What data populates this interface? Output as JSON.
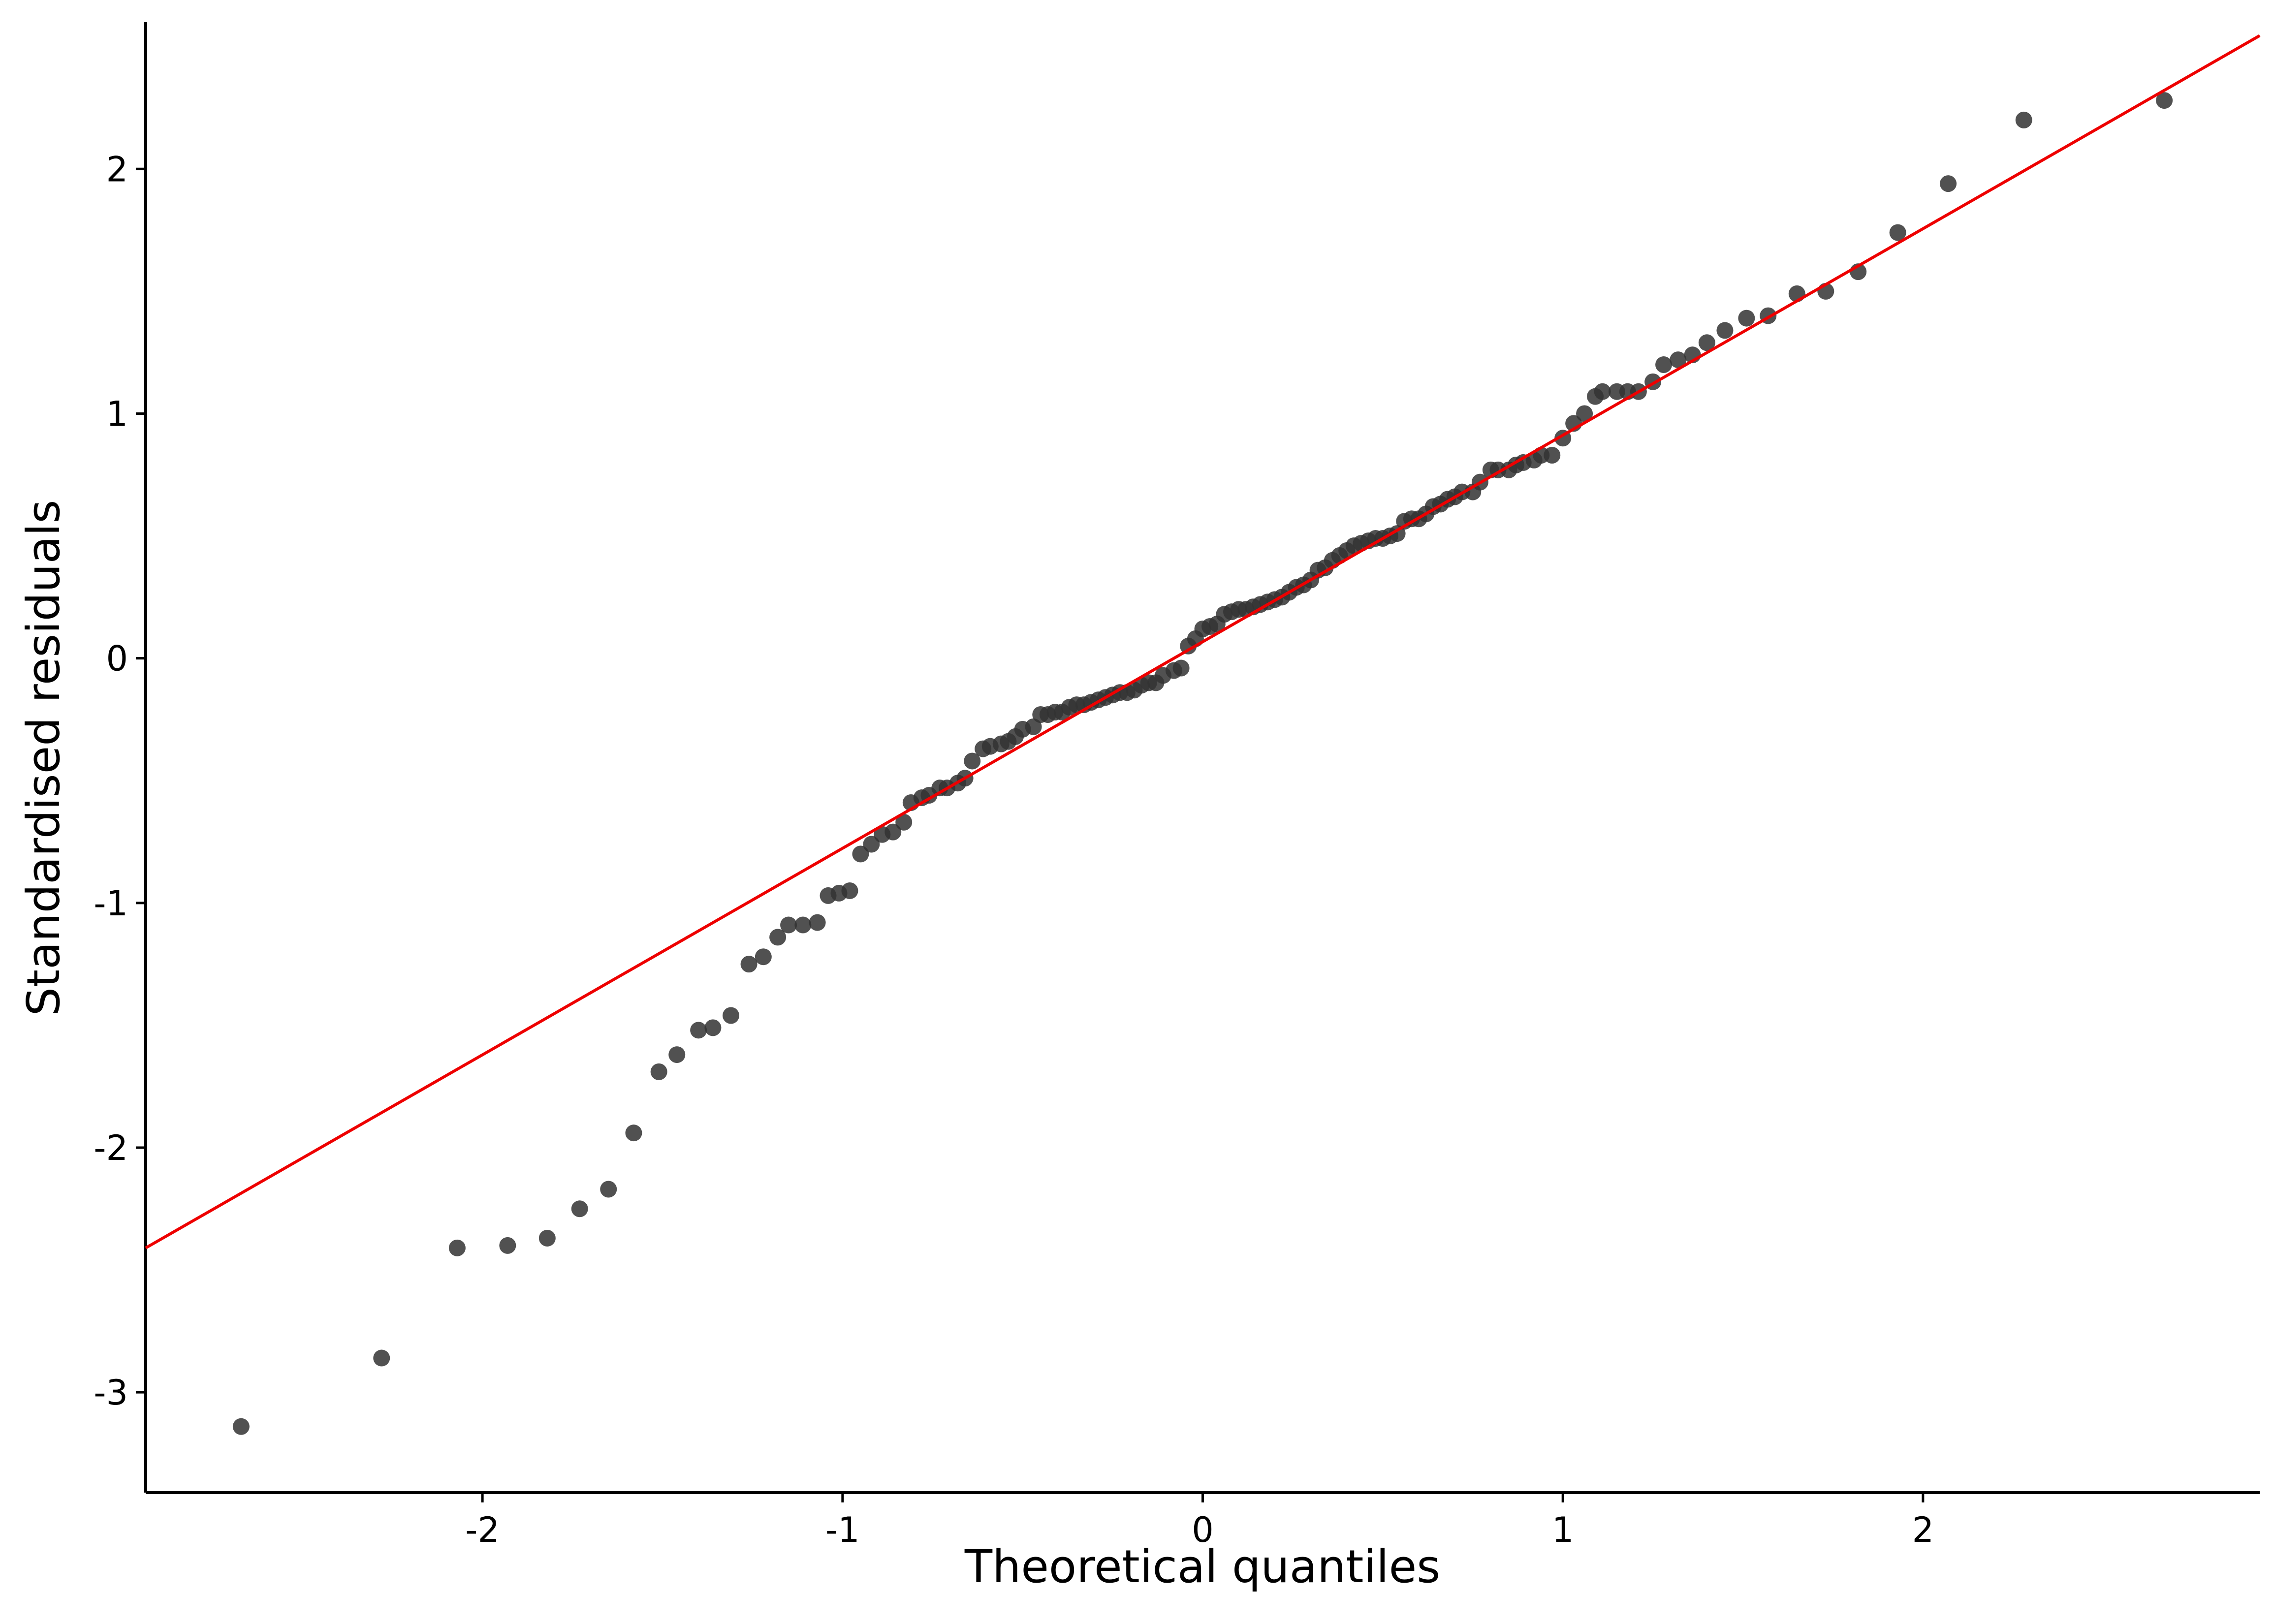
{
  "chart_data": {
    "type": "scatter",
    "xlabel": "Theoretical quantiles",
    "ylabel": "Standardised residuals",
    "xlim": [
      -2.935,
      2.935
    ],
    "ylim": [
      -3.41,
      2.6
    ],
    "xticks": [
      -2,
      -1,
      0,
      1,
      2
    ],
    "yticks": [
      -3,
      -2,
      -1,
      0,
      1,
      2
    ],
    "series": [
      {
        "type": "scatter",
        "color": "#333333",
        "x": [
          -2.67,
          -2.28,
          -2.07,
          -1.93,
          -1.82,
          -1.73,
          -1.65,
          -1.58,
          -1.51,
          -1.46,
          -1.4,
          -1.36,
          -1.31,
          -1.26,
          -1.22,
          -1.18,
          -1.15,
          -1.11,
          -1.07,
          -1.04,
          -1.01,
          -0.98,
          -0.95,
          -0.92,
          -0.89,
          -0.86,
          -0.83,
          -0.81,
          -0.78,
          -0.76,
          -0.73,
          -0.71,
          -0.68,
          -0.66,
          -0.64,
          -0.61,
          -0.59,
          -0.56,
          -0.54,
          -0.52,
          -0.5,
          -0.47,
          -0.45,
          -0.43,
          -0.41,
          -0.39,
          -0.37,
          -0.35,
          -0.33,
          -0.31,
          -0.29,
          -0.27,
          -0.25,
          -0.23,
          -0.21,
          -0.19,
          -0.17,
          -0.15,
          -0.13,
          -0.11,
          -0.08,
          -0.06,
          -0.04,
          -0.02,
          0,
          0.02,
          0.04,
          0.06,
          0.08,
          0.1,
          0.12,
          0.14,
          0.16,
          0.18,
          0.2,
          0.22,
          0.24,
          0.26,
          0.28,
          0.3,
          0.32,
          0.34,
          0.36,
          0.38,
          0.4,
          0.42,
          0.44,
          0.46,
          0.48,
          0.5,
          0.52,
          0.54,
          0.56,
          0.58,
          0.6,
          0.62,
          0.64,
          0.66,
          0.68,
          0.7,
          0.72,
          0.75,
          0.77,
          0.8,
          0.82,
          0.85,
          0.87,
          0.89,
          0.92,
          0.94,
          0.97,
          1,
          1.03,
          1.06,
          1.09,
          1.11,
          1.15,
          1.18,
          1.21,
          1.25,
          1.28,
          1.32,
          1.36,
          1.4,
          1.45,
          1.51,
          1.57,
          1.65,
          1.73,
          1.82,
          1.93,
          2.07,
          2.28,
          2.67
        ],
        "values": [
          -3.14,
          -2.86,
          -2.41,
          -2.4,
          -2.37,
          -2.25,
          -2.17,
          -1.94,
          -1.69,
          -1.62,
          -1.52,
          -1.51,
          -1.46,
          -1.25,
          -1.22,
          -1.14,
          -1.09,
          -1.09,
          -1.08,
          -0.97,
          -0.96,
          -0.95,
          -0.8,
          -0.76,
          -0.72,
          -0.71,
          -0.67,
          -0.59,
          -0.57,
          -0.56,
          -0.53,
          -0.53,
          -0.51,
          -0.49,
          -0.42,
          -0.37,
          -0.36,
          -0.35,
          -0.34,
          -0.32,
          -0.29,
          -0.28,
          -0.23,
          -0.23,
          -0.22,
          -0.22,
          -0.2,
          -0.19,
          -0.19,
          -0.18,
          -0.17,
          -0.16,
          -0.15,
          -0.14,
          -0.14,
          -0.13,
          -0.11,
          -0.1,
          -0.1,
          -0.07,
          -0.05,
          -0.04,
          0.05,
          0.08,
          0.12,
          0.13,
          0.14,
          0.18,
          0.19,
          0.2,
          0.2,
          0.21,
          0.22,
          0.23,
          0.24,
          0.25,
          0.27,
          0.29,
          0.3,
          0.32,
          0.36,
          0.37,
          0.4,
          0.42,
          0.44,
          0.46,
          0.47,
          0.48,
          0.49,
          0.49,
          0.5,
          0.51,
          0.56,
          0.57,
          0.57,
          0.59,
          0.62,
          0.63,
          0.65,
          0.66,
          0.68,
          0.68,
          0.72,
          0.77,
          0.77,
          0.77,
          0.79,
          0.8,
          0.81,
          0.83,
          0.83,
          0.9,
          0.96,
          1,
          1.07,
          1.09,
          1.09,
          1.09,
          1.09,
          1.13,
          1.2,
          1.22,
          1.24,
          1.29,
          1.34,
          1.39,
          1.4,
          1.49,
          1.5,
          1.58,
          1.74,
          1.94,
          2.2,
          2.28
        ]
      },
      {
        "type": "line",
        "color": "#ee0000",
        "x": [
          -2.935,
          2.935
        ],
        "values": [
          -2.41,
          2.545
        ]
      }
    ]
  }
}
